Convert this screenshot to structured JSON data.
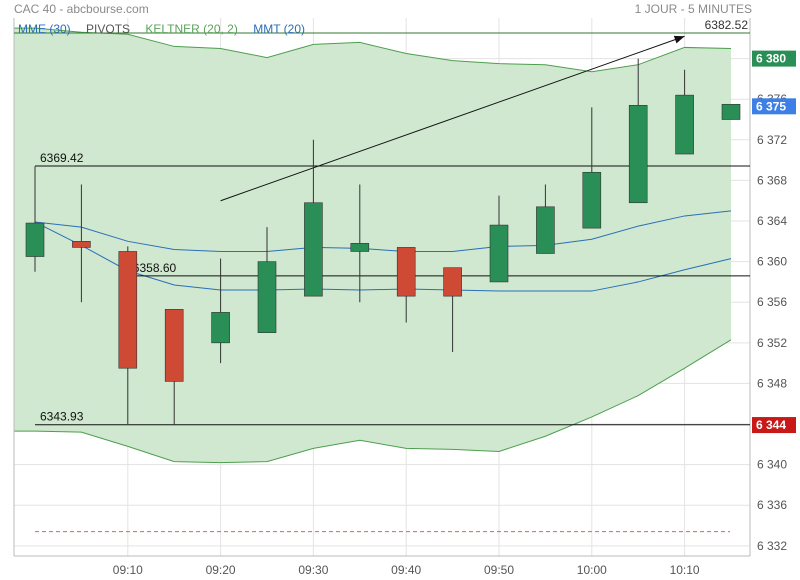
{
  "header": {
    "title": "CAC 40 - abcbourse.com",
    "period": "1 JOUR - 5 MINUTES"
  },
  "legend": [
    {
      "label": "MME (30)",
      "color": "#2a6fb8"
    },
    {
      "label": "PIVOTS",
      "color": "#555555"
    },
    {
      "label": "KELTNER (20, 2)",
      "color": "#5aa35a"
    },
    {
      "label": "MMT (20)",
      "color": "#2a6fb8"
    }
  ],
  "colors": {
    "up": "#2a8f56",
    "down": "#cf4a34",
    "band_fill": "#cfe8cf",
    "band_line": "#4e9e4e",
    "ema": "#2a6fb8",
    "grid": "#e3e3e3",
    "badge_blue": "#3d7fe6",
    "badge_red": "#c81818",
    "badge_green": "#2a8f56",
    "dash": "#e06060"
  },
  "chart_data": {
    "type": "candlestick",
    "ylim": [
      6331,
      6384
    ],
    "yticks": [
      "6 332",
      "6 336",
      "6 340",
      "6 344",
      "6 348",
      "6 352",
      "6 356",
      "6 360",
      "6 364",
      "6 368",
      "6 372",
      "6 376",
      "6 380"
    ],
    "xticks": [
      "09:10",
      "09:20",
      "09:30",
      "09:40",
      "09:50",
      "10:00",
      "10:10"
    ],
    "x": [
      "09:00",
      "09:05",
      "09:10",
      "09:15",
      "09:20",
      "09:25",
      "09:30",
      "09:35",
      "09:40",
      "09:45",
      "09:50",
      "09:55",
      "10:00",
      "10:05",
      "10:10",
      "10:15"
    ],
    "ohlc": [
      [
        6360.5,
        6369.4,
        6359.0,
        6363.8
      ],
      [
        6362.0,
        6367.6,
        6356.0,
        6361.4
      ],
      [
        6361.0,
        6361.5,
        6344.0,
        6349.5
      ],
      [
        6355.3,
        6355.3,
        6343.9,
        6348.2
      ],
      [
        6352.0,
        6360.3,
        6350.0,
        6355.0
      ],
      [
        6353.0,
        6363.4,
        6353.0,
        6360.0
      ],
      [
        6356.6,
        6372.0,
        6356.6,
        6365.8
      ],
      [
        6361.0,
        6367.6,
        6356.0,
        6361.8
      ],
      [
        6361.4,
        6361.4,
        6354.0,
        6356.6
      ],
      [
        6359.4,
        6359.4,
        6351.1,
        6356.6
      ],
      [
        6358.0,
        6366.5,
        6358.0,
        6363.6
      ],
      [
        6360.8,
        6367.6,
        6360.8,
        6365.4
      ],
      [
        6363.3,
        6375.2,
        6363.3,
        6368.8
      ],
      [
        6365.8,
        6380.0,
        6365.8,
        6375.4
      ],
      [
        6370.6,
        6378.9,
        6370.6,
        6376.4
      ],
      [
        6374.0,
        6375.5,
        6374.0,
        6375.5
      ]
    ],
    "keltner_upper": [
      6383.0,
      6382.6,
      6382.4,
      6381.2,
      6381.0,
      6380.1,
      6381.4,
      6381.6,
      6380.5,
      6379.8,
      6379.5,
      6379.4,
      6378.7,
      6379.4,
      6381.1,
      6381.0
    ],
    "keltner_lower": [
      6343.3,
      6343.2,
      6341.8,
      6340.3,
      6340.2,
      6340.3,
      6341.6,
      6342.4,
      6341.6,
      6341.5,
      6341.3,
      6342.8,
      6344.7,
      6346.8,
      6349.5,
      6352.3
    ],
    "mmt": [
      6363.9,
      6361.6,
      6359.1,
      6357.7,
      6357.2,
      6357.2,
      6357.3,
      6357.2,
      6357.3,
      6357.2,
      6357.1,
      6357.1,
      6357.1,
      6358.0,
      6359.2,
      6360.3
    ],
    "mme": [
      6363.9,
      6363.4,
      6362.0,
      6361.2,
      6361.0,
      6361.0,
      6361.4,
      6361.3,
      6361.0,
      6361.0,
      6361.5,
      6361.6,
      6362.2,
      6363.5,
      6364.5,
      6365.0
    ],
    "pivots": [
      {
        "label": "6369.42",
        "value": 6369.42
      },
      {
        "label": "6358.60",
        "value": 6358.6
      },
      {
        "label": "6343.93",
        "value": 6343.93
      }
    ],
    "top_label": "6382.52",
    "top_value": 6382.52,
    "badges": [
      {
        "label": "6 380",
        "value": 6380.0,
        "color": "#2a8f56"
      },
      {
        "label": "6 375",
        "value": 6375.3,
        "color": "#3d7fe6"
      },
      {
        "label": "6 344",
        "value": 6343.9,
        "color": "#c81818"
      }
    ],
    "dashed_level": 6333.4,
    "trendline": {
      "from": [
        "09:20",
        6366.0
      ],
      "to": [
        "10:10",
        6382.2
      ]
    }
  }
}
